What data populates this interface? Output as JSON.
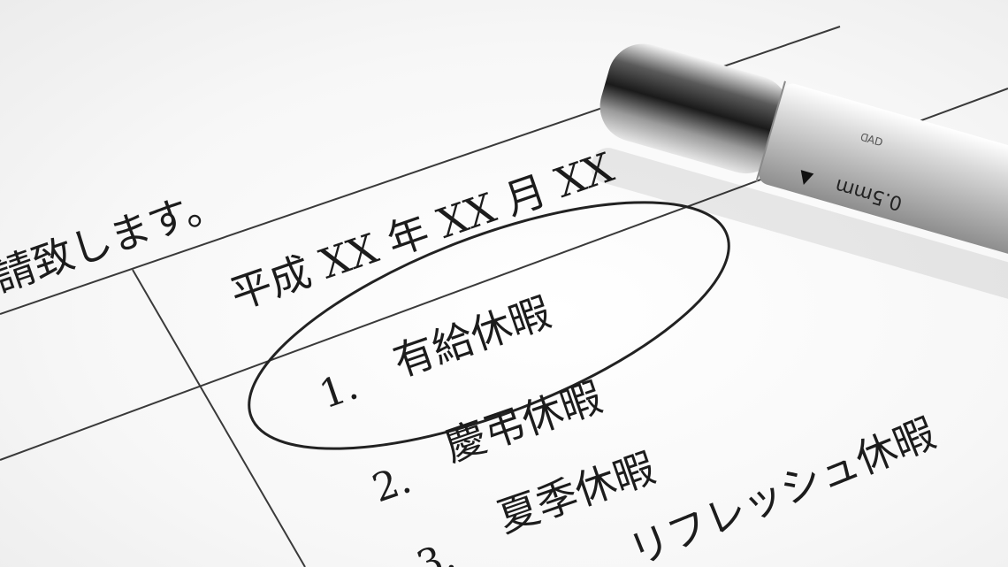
{
  "form": {
    "request_line": "請致します。",
    "date_line": "平成 XX 年 XX 月 XX",
    "options": [
      {
        "number": "1.",
        "label": "有給休暇"
      },
      {
        "number": "",
        "label": "慶弔休暇"
      },
      {
        "number": "2.",
        "label": "夏季休暇"
      },
      {
        "number": "3.",
        "label": "リフレッシュ休暇"
      }
    ]
  },
  "pen": {
    "marking": "0.5mm",
    "arrow_glyph": "▲",
    "brand_text": "ᗡ∀Ꭰ"
  },
  "colors": {
    "ink": "#1c1c1c",
    "paper": "#ffffff",
    "pen_metal": "#c8c8c8"
  }
}
